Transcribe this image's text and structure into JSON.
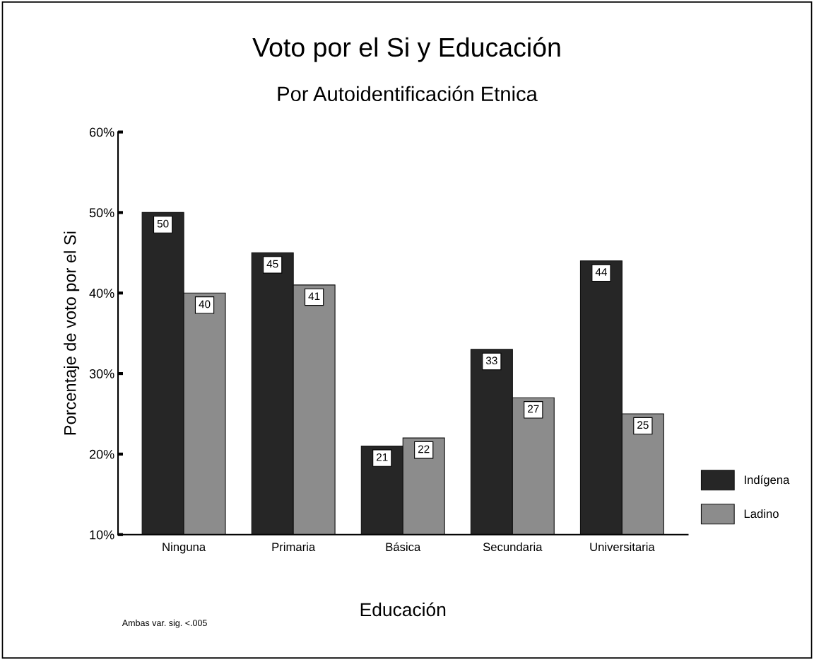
{
  "chart_data": {
    "type": "bar",
    "title": "Voto por el Si y Educación",
    "subtitle": "Por Autoidentificación Etnica",
    "xlabel": "Educación",
    "ylabel": "Porcentaje de voto por el Si",
    "categories": [
      "Ninguna",
      "Primaria",
      "Básica",
      "Secundaria",
      "Universitaria"
    ],
    "series": [
      {
        "name": "Indígena",
        "color": "#262626",
        "values": [
          50,
          45,
          21,
          33,
          44
        ]
      },
      {
        "name": "Ladino",
        "color": "#8c8c8c",
        "values": [
          40,
          41,
          22,
          27,
          25
        ]
      }
    ],
    "ylim": [
      10,
      60
    ],
    "yticks": [
      {
        "value": 10,
        "label": "10%"
      },
      {
        "value": 20,
        "label": "20%"
      },
      {
        "value": 30,
        "label": "30%"
      },
      {
        "value": 40,
        "label": "40%"
      },
      {
        "value": 50,
        "label": "50%"
      },
      {
        "value": 60,
        "label": "60%"
      }
    ],
    "grid": false,
    "legend": "right",
    "data_labels": true,
    "annotations": [
      "Ambas var. sig. <.005"
    ]
  }
}
